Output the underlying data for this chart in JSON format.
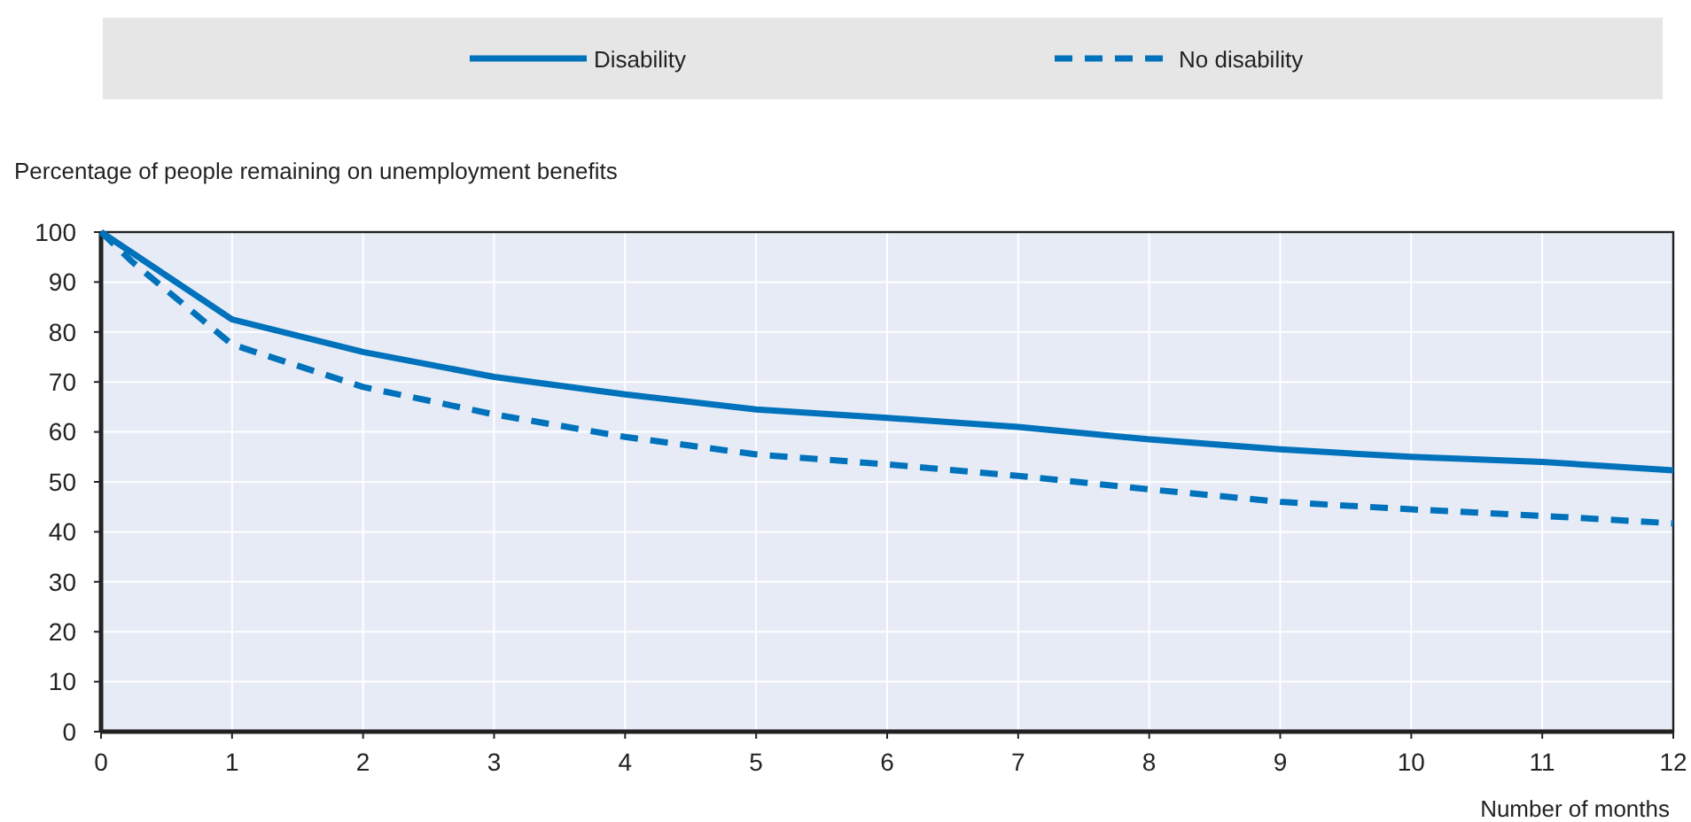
{
  "chart_data": {
    "type": "line",
    "xlabel": "Number of months",
    "ylabel": "Percentage of people remaining on unemployment benefits",
    "series": [
      {
        "name": "Disability",
        "color": "#0072bc",
        "line_style": "solid",
        "x": [
          0,
          1,
          2,
          3,
          4,
          5,
          6,
          7,
          8,
          9,
          10,
          11,
          12
        ],
        "values": [
          100,
          82.5,
          76,
          71,
          67.5,
          64.5,
          62.8,
          61,
          58.5,
          56.5,
          55,
          54,
          52.3
        ]
      },
      {
        "name": "No disability",
        "color": "#0072bc",
        "line_style": "dashed",
        "x": [
          0,
          0.24,
          1,
          2,
          3,
          4,
          5,
          6,
          7,
          8,
          9,
          10,
          11,
          12
        ],
        "values": [
          100,
          94,
          77.5,
          69,
          63.5,
          59,
          55.5,
          53.5,
          51.2,
          48.5,
          46,
          44.5,
          43.2,
          41.7
        ]
      }
    ],
    "xlim": [
      0,
      12
    ],
    "xticks": [
      0,
      1,
      2,
      3,
      4,
      5,
      6,
      7,
      8,
      9,
      10,
      11,
      12
    ],
    "ylim": [
      0,
      100
    ],
    "yticks": [
      0,
      10,
      20,
      30,
      40,
      50,
      60,
      70,
      80,
      90,
      100
    ],
    "grid": true,
    "legend": "top"
  }
}
